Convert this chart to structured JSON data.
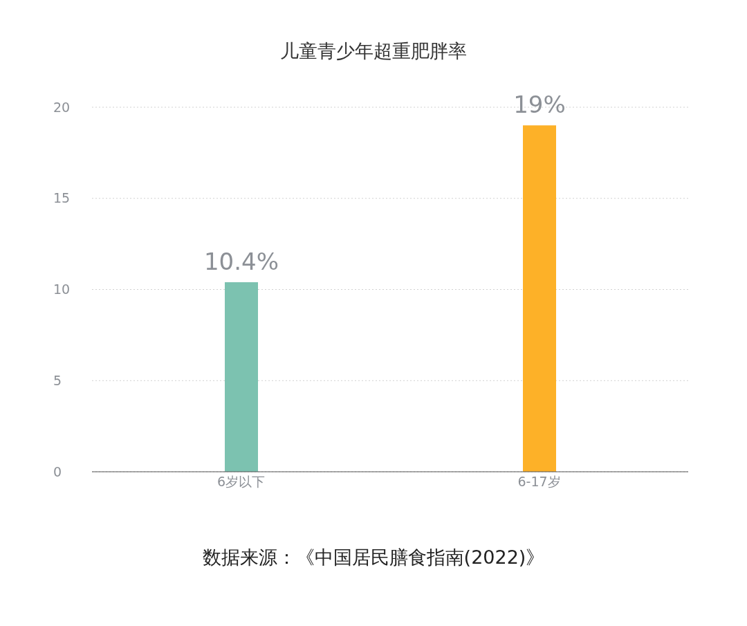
{
  "chart_data": {
    "type": "bar",
    "title": "儿童青少年超重肥胖率",
    "categories": [
      "6岁以下",
      "6-17岁"
    ],
    "values": [
      10.4,
      19
    ],
    "colors": [
      "#7cc2b0",
      "#fdb128"
    ],
    "value_labels": [
      "10.4%",
      "19%"
    ],
    "ylim": [
      0,
      20
    ],
    "yticks": [
      0,
      5,
      10,
      15,
      20
    ],
    "grid": "y",
    "annotations": [
      "数据来源：《中国居民膳食指南(2022)》"
    ]
  }
}
